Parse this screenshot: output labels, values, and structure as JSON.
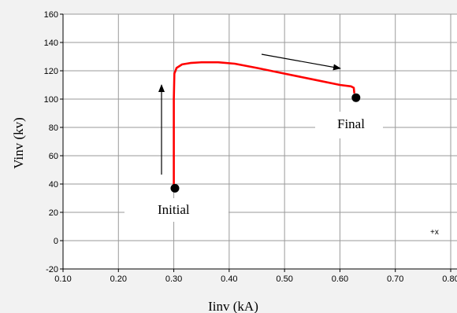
{
  "chart_data": {
    "type": "line",
    "xlabel": "Iinv (kA)",
    "ylabel": "Vinv (kv)",
    "xlim": [
      0.1,
      0.8
    ],
    "ylim": [
      -20,
      160
    ],
    "x_ticks": [
      "0.10",
      "0.20",
      "0.30",
      "0.40",
      "0.50",
      "0.60",
      "0.70",
      "0.80"
    ],
    "y_ticks": [
      "160",
      "140",
      "120",
      "100",
      "80",
      "60",
      "40",
      "20",
      "0",
      "-20"
    ],
    "grid": true,
    "series": [
      {
        "color": "#ff0000",
        "x": [
          0.3,
          0.3,
          0.301,
          0.305,
          0.315,
          0.33,
          0.35,
          0.38,
          0.41,
          0.45,
          0.5,
          0.55,
          0.6,
          0.62,
          0.625,
          0.626
        ],
        "y": [
          38,
          100,
          118,
          122,
          124.5,
          125.5,
          126,
          126,
          125,
          122,
          118,
          114,
          110,
          109,
          108,
          104
        ]
      }
    ],
    "markers": [
      {
        "label": "Initial",
        "x": 0.302,
        "y": 37
      },
      {
        "label": "Final",
        "x": 0.629,
        "y": 101
      }
    ],
    "corner_label": "+x"
  }
}
